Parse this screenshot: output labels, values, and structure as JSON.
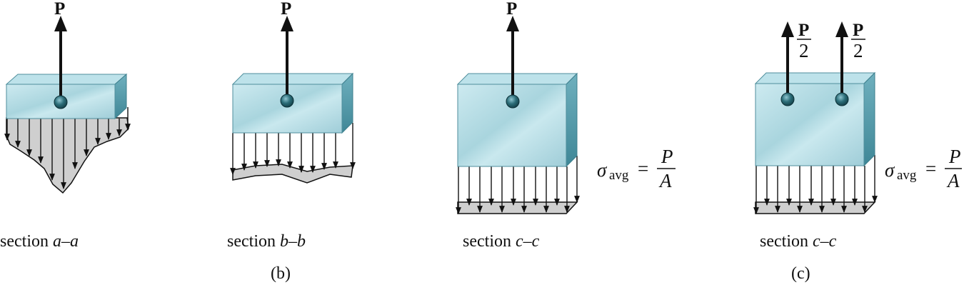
{
  "colors": {
    "block_light": "#d8f0f4",
    "block_mid": "#a6d2dc",
    "block_side": "#5e9fae",
    "block_top": "#bde2ea",
    "stress_fill": "#cfcfcf",
    "arrow": "#111111",
    "pin": "#2b6d78"
  },
  "force_label": "P",
  "half_force": {
    "numerator": "P",
    "denominator": "2"
  },
  "formula": {
    "sigma": "σ",
    "subscript": "avg",
    "equals": "=",
    "numerator": "P",
    "denominator": "A"
  },
  "panels": [
    {
      "caption_word": "section ",
      "caption_var": "a–a"
    },
    {
      "caption_word": "section ",
      "caption_var": "b–b"
    },
    {
      "caption_word": "section ",
      "caption_var": "c–c"
    },
    {
      "caption_word": "section ",
      "caption_var": "c–c"
    }
  ],
  "subfigure_labels": [
    "(b)",
    "(c)"
  ]
}
